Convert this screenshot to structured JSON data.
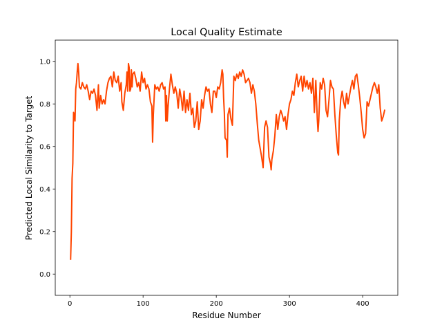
{
  "chart_data": {
    "type": "line",
    "title": "Local Quality Estimate",
    "xlabel": "Residue Number",
    "ylabel": "Predicted Local Similarity to Target",
    "xlim": [
      -20,
      448
    ],
    "ylim": [
      -0.1,
      1.1
    ],
    "xticks": [
      0,
      100,
      200,
      300,
      400
    ],
    "yticks": [
      0.0,
      0.2,
      0.4,
      0.6,
      0.8,
      1.0
    ],
    "ytick_labels": [
      "0.0",
      "0.2",
      "0.4",
      "0.6",
      "0.8",
      "1.0"
    ],
    "grid": false,
    "legend": "none",
    "series": [
      {
        "color": "#ff4500",
        "points": [
          [
            1,
            0.07
          ],
          [
            2,
            0.2
          ],
          [
            3,
            0.45
          ],
          [
            4,
            0.52
          ],
          [
            5,
            0.76
          ],
          [
            6,
            0.75
          ],
          [
            7,
            0.72
          ],
          [
            8,
            0.87
          ],
          [
            9,
            0.9
          ],
          [
            10,
            0.95
          ],
          [
            11,
            0.99
          ],
          [
            12,
            0.95
          ],
          [
            13,
            0.88
          ],
          [
            15,
            0.87
          ],
          [
            17,
            0.9
          ],
          [
            19,
            0.88
          ],
          [
            21,
            0.87
          ],
          [
            23,
            0.89
          ],
          [
            25,
            0.86
          ],
          [
            27,
            0.82
          ],
          [
            29,
            0.86
          ],
          [
            31,
            0.85
          ],
          [
            33,
            0.87
          ],
          [
            35,
            0.84
          ],
          [
            37,
            0.77
          ],
          [
            39,
            0.89
          ],
          [
            40,
            0.78
          ],
          [
            42,
            0.84
          ],
          [
            44,
            0.8
          ],
          [
            46,
            0.82
          ],
          [
            48,
            0.8
          ],
          [
            50,
            0.86
          ],
          [
            52,
            0.9
          ],
          [
            54,
            0.92
          ],
          [
            56,
            0.93
          ],
          [
            58,
            0.88
          ],
          [
            60,
            0.95
          ],
          [
            62,
            0.91
          ],
          [
            64,
            0.9
          ],
          [
            66,
            0.93
          ],
          [
            68,
            0.86
          ],
          [
            70,
            0.9
          ],
          [
            71,
            0.81
          ],
          [
            73,
            0.77
          ],
          [
            75,
            0.85
          ],
          [
            77,
            0.89
          ],
          [
            78,
            0.95
          ],
          [
            79,
            0.86
          ],
          [
            80,
            0.99
          ],
          [
            81,
            0.97
          ],
          [
            82,
            0.86
          ],
          [
            83,
            0.87
          ],
          [
            84,
            0.96
          ],
          [
            85,
            0.88
          ],
          [
            86,
            0.94
          ],
          [
            88,
            0.95
          ],
          [
            90,
            0.92
          ],
          [
            92,
            0.88
          ],
          [
            94,
            0.9
          ],
          [
            96,
            0.86
          ],
          [
            98,
            0.95
          ],
          [
            100,
            0.9
          ],
          [
            102,
            0.92
          ],
          [
            104,
            0.87
          ],
          [
            106,
            0.89
          ],
          [
            108,
            0.87
          ],
          [
            110,
            0.81
          ],
          [
            112,
            0.79
          ],
          [
            113,
            0.62
          ],
          [
            114,
            0.75
          ],
          [
            116,
            0.89
          ],
          [
            118,
            0.87
          ],
          [
            120,
            0.88
          ],
          [
            122,
            0.86
          ],
          [
            124,
            0.89
          ],
          [
            126,
            0.9
          ],
          [
            128,
            0.87
          ],
          [
            130,
            0.88
          ],
          [
            131,
            0.72
          ],
          [
            132,
            0.84
          ],
          [
            133,
            0.72
          ],
          [
            134,
            0.78
          ],
          [
            136,
            0.87
          ],
          [
            138,
            0.94
          ],
          [
            140,
            0.89
          ],
          [
            142,
            0.85
          ],
          [
            144,
            0.88
          ],
          [
            146,
            0.85
          ],
          [
            148,
            0.78
          ],
          [
            150,
            0.87
          ],
          [
            152,
            0.83
          ],
          [
            154,
            0.77
          ],
          [
            156,
            0.86
          ],
          [
            158,
            0.76
          ],
          [
            160,
            0.82
          ],
          [
            162,
            0.77
          ],
          [
            164,
            0.85
          ],
          [
            166,
            0.75
          ],
          [
            168,
            0.78
          ],
          [
            170,
            0.69
          ],
          [
            172,
            0.72
          ],
          [
            174,
            0.81
          ],
          [
            176,
            0.68
          ],
          [
            178,
            0.72
          ],
          [
            180,
            0.82
          ],
          [
            182,
            0.78
          ],
          [
            184,
            0.84
          ],
          [
            186,
            0.88
          ],
          [
            188,
            0.86
          ],
          [
            190,
            0.87
          ],
          [
            192,
            0.8
          ],
          [
            194,
            0.76
          ],
          [
            196,
            0.86
          ],
          [
            198,
            0.86
          ],
          [
            200,
            0.83
          ],
          [
            202,
            0.88
          ],
          [
            204,
            0.87
          ],
          [
            206,
            0.9
          ],
          [
            208,
            0.96
          ],
          [
            209,
            0.94
          ],
          [
            210,
            0.83
          ],
          [
            211,
            0.76
          ],
          [
            212,
            0.64
          ],
          [
            214,
            0.63
          ],
          [
            215,
            0.55
          ],
          [
            216,
            0.75
          ],
          [
            218,
            0.78
          ],
          [
            220,
            0.73
          ],
          [
            222,
            0.7
          ],
          [
            224,
            0.93
          ],
          [
            226,
            0.91
          ],
          [
            228,
            0.94
          ],
          [
            230,
            0.92
          ],
          [
            232,
            0.95
          ],
          [
            234,
            0.93
          ],
          [
            236,
            0.96
          ],
          [
            238,
            0.94
          ],
          [
            240,
            0.9
          ],
          [
            242,
            0.91
          ],
          [
            244,
            0.92
          ],
          [
            246,
            0.9
          ],
          [
            248,
            0.85
          ],
          [
            250,
            0.89
          ],
          [
            252,
            0.86
          ],
          [
            254,
            0.8
          ],
          [
            256,
            0.71
          ],
          [
            258,
            0.63
          ],
          [
            260,
            0.59
          ],
          [
            262,
            0.55
          ],
          [
            264,
            0.5
          ],
          [
            266,
            0.69
          ],
          [
            268,
            0.72
          ],
          [
            270,
            0.69
          ],
          [
            272,
            0.55
          ],
          [
            274,
            0.52
          ],
          [
            275,
            0.49
          ],
          [
            276,
            0.54
          ],
          [
            278,
            0.58
          ],
          [
            280,
            0.65
          ],
          [
            282,
            0.75
          ],
          [
            284,
            0.68
          ],
          [
            286,
            0.74
          ],
          [
            288,
            0.77
          ],
          [
            290,
            0.75
          ],
          [
            292,
            0.72
          ],
          [
            294,
            0.74
          ],
          [
            296,
            0.68
          ],
          [
            298,
            0.75
          ],
          [
            300,
            0.8
          ],
          [
            302,
            0.82
          ],
          [
            304,
            0.86
          ],
          [
            306,
            0.84
          ],
          [
            308,
            0.9
          ],
          [
            310,
            0.94
          ],
          [
            312,
            0.88
          ],
          [
            314,
            0.91
          ],
          [
            316,
            0.93
          ],
          [
            318,
            0.86
          ],
          [
            320,
            0.93
          ],
          [
            322,
            0.88
          ],
          [
            324,
            0.91
          ],
          [
            326,
            0.87
          ],
          [
            328,
            0.9
          ],
          [
            330,
            0.85
          ],
          [
            332,
            0.92
          ],
          [
            334,
            0.76
          ],
          [
            336,
            0.91
          ],
          [
            338,
            0.73
          ],
          [
            339,
            0.67
          ],
          [
            340,
            0.72
          ],
          [
            342,
            0.9
          ],
          [
            344,
            0.87
          ],
          [
            346,
            0.92
          ],
          [
            348,
            0.89
          ],
          [
            350,
            0.77
          ],
          [
            352,
            0.74
          ],
          [
            354,
            0.82
          ],
          [
            356,
            0.91
          ],
          [
            358,
            0.88
          ],
          [
            360,
            0.87
          ],
          [
            362,
            0.75
          ],
          [
            364,
            0.65
          ],
          [
            366,
            0.57
          ],
          [
            367,
            0.56
          ],
          [
            368,
            0.72
          ],
          [
            370,
            0.82
          ],
          [
            372,
            0.86
          ],
          [
            374,
            0.81
          ],
          [
            376,
            0.78
          ],
          [
            378,
            0.85
          ],
          [
            380,
            0.8
          ],
          [
            382,
            0.84
          ],
          [
            384,
            0.88
          ],
          [
            386,
            0.91
          ],
          [
            388,
            0.87
          ],
          [
            390,
            0.93
          ],
          [
            392,
            0.94
          ],
          [
            394,
            0.89
          ],
          [
            396,
            0.83
          ],
          [
            398,
            0.76
          ],
          [
            400,
            0.68
          ],
          [
            402,
            0.64
          ],
          [
            404,
            0.66
          ],
          [
            406,
            0.81
          ],
          [
            408,
            0.79
          ],
          [
            410,
            0.82
          ],
          [
            412,
            0.85
          ],
          [
            414,
            0.88
          ],
          [
            416,
            0.9
          ],
          [
            418,
            0.88
          ],
          [
            420,
            0.85
          ],
          [
            422,
            0.89
          ],
          [
            424,
            0.78
          ],
          [
            426,
            0.72
          ],
          [
            428,
            0.74
          ],
          [
            430,
            0.77
          ]
        ]
      }
    ]
  }
}
